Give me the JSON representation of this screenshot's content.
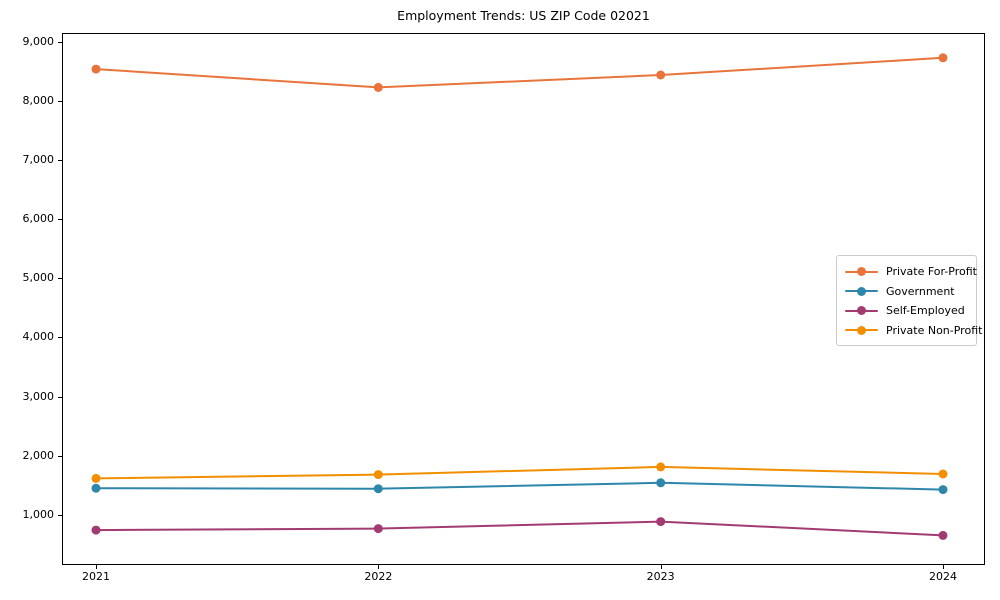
{
  "chart_data": {
    "type": "line",
    "title": "Employment Trends: US ZIP Code 02021",
    "xlabel": "",
    "ylabel": "",
    "x": [
      "2021",
      "2022",
      "2023",
      "2024"
    ],
    "series": [
      {
        "name": "Private For-Profit",
        "color": "#E8743B",
        "values": [
          8540,
          8230,
          8440,
          8730
        ]
      },
      {
        "name": "Government",
        "color": "#2E86AB",
        "values": [
          1450,
          1440,
          1540,
          1425
        ]
      },
      {
        "name": "Self-Employed",
        "color": "#A23B72",
        "values": [
          740,
          765,
          885,
          650
        ]
      },
      {
        "name": "Private Non-Profit",
        "color": "#F18F01",
        "values": [
          1615,
          1680,
          1810,
          1690
        ]
      }
    ],
    "ylim": [
      150,
      9150
    ],
    "yticks": [
      1000,
      2000,
      3000,
      4000,
      5000,
      6000,
      7000,
      8000,
      9000
    ],
    "ytick_labels": [
      "1,000",
      "2,000",
      "3,000",
      "4,000",
      "5,000",
      "6,000",
      "7,000",
      "8,000",
      "9,000"
    ],
    "grid": false,
    "legend_position": "center right",
    "marker": "circle",
    "background_color": "#ffffff",
    "axis_color": "#000000"
  }
}
